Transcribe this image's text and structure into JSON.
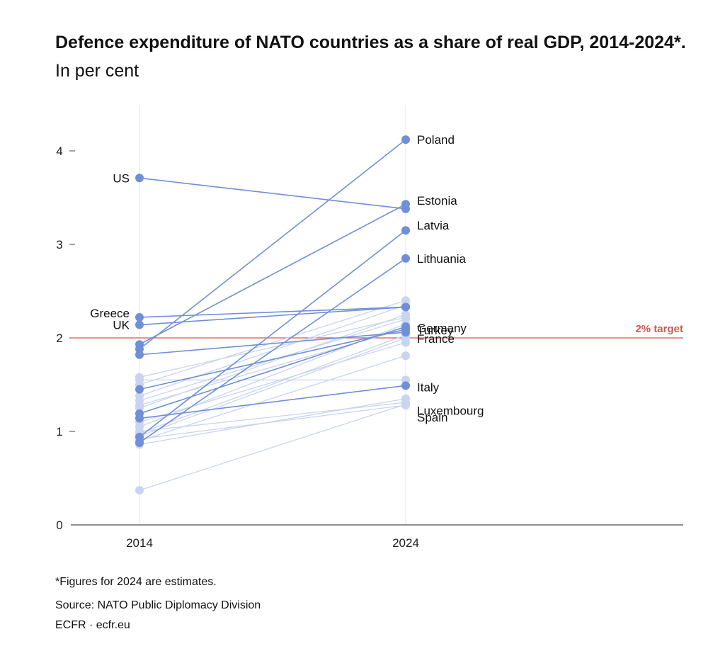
{
  "title": {
    "bold": "Defence expenditure of NATO countries as a share of real GDP, 2014-2024*.",
    "light": "In per cent"
  },
  "chart_data": {
    "type": "line",
    "title": "Defence expenditure of NATO countries as a share of real GDP, 2014-2024*.",
    "subtitle": "In per cent",
    "x": [
      "2014",
      "2024"
    ],
    "ylim": [
      0,
      4.3
    ],
    "yticks": [
      0,
      1,
      2,
      3,
      4
    ],
    "grid": "vertical at 2014 and 2024",
    "reference_line": {
      "value": 2,
      "label": "2% target",
      "color": "#d9534f"
    },
    "highlight_color": "#6f8fd8",
    "muted_color": "#c8d4f0",
    "series": [
      {
        "name": "US",
        "values": [
          3.71,
          3.38
        ],
        "highlight": true,
        "label_2014": "US"
      },
      {
        "name": "Greece",
        "values": [
          2.22,
          2.33
        ],
        "highlight": true,
        "label_2014": "Greece"
      },
      {
        "name": "UK",
        "values": [
          2.14,
          2.33
        ],
        "highlight": true,
        "label_2014": "UK"
      },
      {
        "name": "Poland",
        "values": [
          1.88,
          4.12
        ],
        "highlight": true,
        "label_2024": "Poland"
      },
      {
        "name": "Estonia",
        "values": [
          1.93,
          3.43
        ],
        "highlight": true,
        "label_2024": "Estonia"
      },
      {
        "name": "Latvia",
        "values": [
          0.94,
          3.15
        ],
        "highlight": true,
        "label_2024": "Latvia"
      },
      {
        "name": "Lithuania",
        "values": [
          0.88,
          2.85
        ],
        "highlight": true,
        "label_2024": "Lithuania"
      },
      {
        "name": "Germany",
        "values": [
          1.19,
          2.12
        ],
        "highlight": true,
        "label_2024": "Germany"
      },
      {
        "name": "Turkey",
        "values": [
          1.45,
          2.09
        ],
        "highlight": true,
        "label_2024": "Turkey"
      },
      {
        "name": "France",
        "values": [
          1.82,
          2.06
        ],
        "highlight": true,
        "label_2024": "France"
      },
      {
        "name": "Italy",
        "values": [
          1.14,
          1.49
        ],
        "highlight": true,
        "label_2024": "Italy"
      },
      {
        "name": "Luxembourg",
        "values": [
          0.37,
          1.29
        ],
        "highlight": false,
        "label_2024": "Luxembourg"
      },
      {
        "name": "Spain",
        "values": [
          0.92,
          1.28
        ],
        "highlight": false,
        "label_2024": "Spain"
      },
      {
        "values": [
          1.55,
          1.55
        ],
        "highlight": false
      },
      {
        "values": [
          1.5,
          2.4
        ],
        "highlight": false
      },
      {
        "values": [
          1.38,
          2.35
        ],
        "highlight": false
      },
      {
        "values": [
          1.33,
          2.2
        ],
        "highlight": false
      },
      {
        "values": [
          1.25,
          2.25
        ],
        "highlight": false
      },
      {
        "values": [
          1.05,
          2.15
        ],
        "highlight": false
      },
      {
        "values": [
          0.98,
          2.03
        ],
        "highlight": false
      },
      {
        "values": [
          0.95,
          2.0
        ],
        "highlight": false
      },
      {
        "values": [
          0.9,
          1.81
        ],
        "highlight": false
      },
      {
        "values": [
          0.86,
          1.35
        ],
        "highlight": false
      },
      {
        "values": [
          1.0,
          1.31
        ],
        "highlight": false
      },
      {
        "values": [
          1.58,
          2.22
        ],
        "highlight": false
      },
      {
        "values": [
          1.1,
          1.95
        ],
        "highlight": false
      },
      {
        "values": [
          1.28,
          2.1
        ],
        "highlight": false
      }
    ]
  },
  "footer": {
    "note": "*Figures for 2024 are estimates.",
    "source": "Source: NATO Public Diplomacy Division",
    "credit": "ECFR · ecfr.eu"
  }
}
